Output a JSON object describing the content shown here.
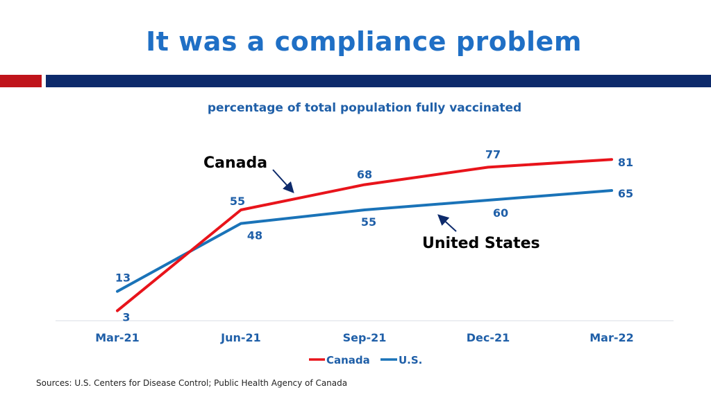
{
  "slide": {
    "title": "It was a compliance problem",
    "source": "Sources: U.S. Centers for Disease Control; Public Health Agency of Canada"
  },
  "colors": {
    "title": "#1f6fc5",
    "canada": "#e8141b",
    "us": "#1a73b8",
    "label": "#1f5fa8",
    "accent_red": "#c0141b",
    "accent_navy": "#0d2a6b"
  },
  "chart_data": {
    "type": "line",
    "title": "percentage of total population fully vaccinated",
    "categories": [
      "Mar-21",
      "Jun-21",
      "Sep-21",
      "Dec-21",
      "Mar-22"
    ],
    "series": [
      {
        "name": "Canada",
        "values": [
          3,
          55,
          68,
          77,
          81
        ]
      },
      {
        "name": "U.S.",
        "values": [
          13,
          48,
          55,
          60,
          65
        ]
      }
    ],
    "legend": [
      "Canada",
      "U.S."
    ],
    "annotations": [
      "Canada",
      "United States"
    ],
    "xlabel": "",
    "ylabel": "",
    "ylim": [
      0,
      90
    ],
    "grid": false,
    "legend_position": "bottom"
  }
}
